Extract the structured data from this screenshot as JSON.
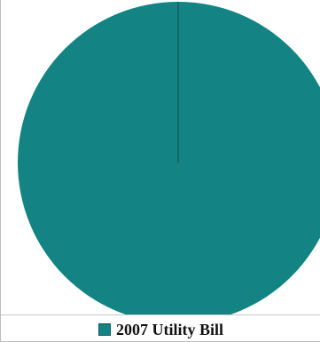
{
  "chart_data": {
    "type": "pie",
    "categories": [
      "2007 Utility Bill"
    ],
    "values": [
      100
    ],
    "colors": [
      "#138383"
    ],
    "title": "",
    "legend": "bottom-center"
  },
  "legend": {
    "label": "2007 Utility Bill"
  }
}
